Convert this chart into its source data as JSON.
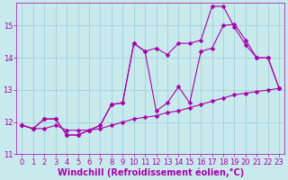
{
  "background_color": "#c8eaed",
  "grid_color": "#a0d0d8",
  "line_color": "#aa00aa",
  "marker_color": "#aa00aa",
  "xlabel": "Windchill (Refroidissement éolien,°C)",
  "xlabel_color": "#aa00aa",
  "tick_color": "#aa00aa",
  "xlim_min": -0.5,
  "xlim_max": 23.5,
  "ylim_min": 11.0,
  "ylim_max": 15.7,
  "yticks": [
    11,
    12,
    13,
    14,
    15
  ],
  "xticks": [
    0,
    1,
    2,
    3,
    4,
    5,
    6,
    7,
    8,
    9,
    10,
    11,
    12,
    13,
    14,
    15,
    16,
    17,
    18,
    19,
    20,
    21,
    22,
    23
  ],
  "series1_x": [
    0,
    1,
    2,
    3,
    4,
    5,
    6,
    7,
    8,
    9,
    10,
    11,
    12,
    13,
    14,
    15,
    16,
    17,
    18,
    19,
    20,
    21,
    22,
    23
  ],
  "series1_y": [
    11.9,
    11.8,
    11.8,
    11.9,
    11.75,
    11.75,
    11.75,
    11.8,
    11.9,
    12.0,
    12.1,
    12.15,
    12.2,
    12.3,
    12.35,
    12.45,
    12.55,
    12.65,
    12.75,
    12.85,
    12.9,
    12.95,
    13.0,
    13.05
  ],
  "series2_x": [
    0,
    1,
    2,
    3,
    4,
    5,
    6,
    7,
    8,
    9,
    10,
    11,
    12,
    13,
    14,
    15,
    16,
    17,
    18,
    19,
    20,
    21,
    22,
    23
  ],
  "series2_y": [
    11.9,
    11.8,
    12.1,
    12.1,
    11.6,
    11.6,
    11.75,
    11.9,
    12.55,
    12.6,
    14.45,
    14.2,
    12.35,
    12.6,
    13.1,
    12.6,
    14.2,
    14.3,
    15.0,
    15.05,
    14.55,
    14.0,
    14.0,
    13.05
  ],
  "series3_x": [
    0,
    1,
    2,
    3,
    4,
    5,
    6,
    7,
    8,
    9,
    10,
    11,
    12,
    13,
    14,
    15,
    16,
    17,
    18,
    19,
    20,
    21,
    22,
    23
  ],
  "series3_y": [
    11.9,
    11.8,
    12.1,
    12.1,
    11.6,
    11.6,
    11.75,
    11.9,
    12.55,
    12.6,
    14.45,
    14.2,
    14.3,
    14.1,
    14.45,
    14.45,
    14.55,
    15.6,
    15.6,
    14.95,
    14.4,
    14.0,
    14.0,
    13.05
  ],
  "tick_fontsize": 6.0,
  "xlabel_fontsize": 7.0,
  "lw": 0.8,
  "ms": 2.5
}
